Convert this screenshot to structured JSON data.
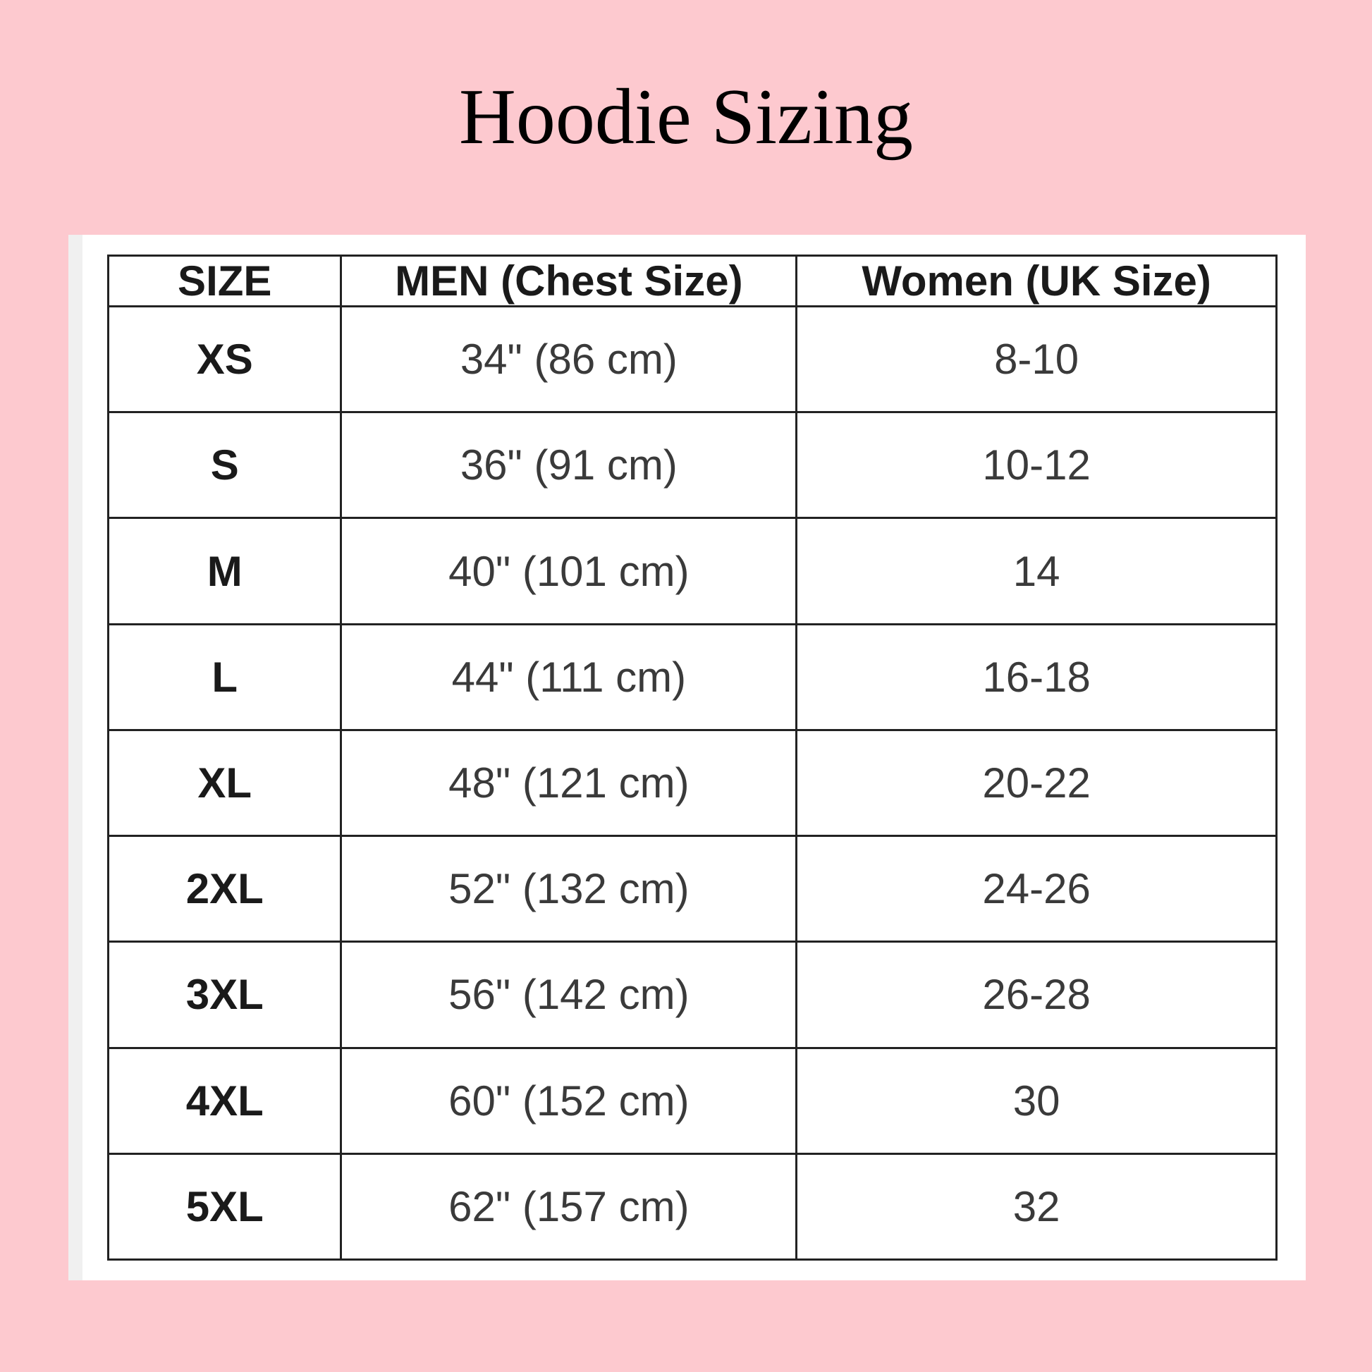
{
  "title": "Hoodie Sizing",
  "colors": {
    "background": "#fdc9cf",
    "panel": "#ffffff",
    "border": "#222222"
  },
  "table": {
    "headers": [
      "SIZE",
      "MEN (Chest Size)",
      "Women (UK Size)"
    ],
    "rows": [
      [
        "XS",
        "34\" (86 cm)",
        "8-10"
      ],
      [
        "S",
        "36\" (91 cm)",
        "10-12"
      ],
      [
        "M",
        "40\" (101 cm)",
        "14"
      ],
      [
        "L",
        "44\" (111 cm)",
        "16-18"
      ],
      [
        "XL",
        "48\" (121 cm)",
        "20-22"
      ],
      [
        "2XL",
        "52\" (132 cm)",
        "24-26"
      ],
      [
        "3XL",
        "56\" (142 cm)",
        "26-28"
      ],
      [
        "4XL",
        "60\" (152 cm)",
        "30"
      ],
      [
        "5XL",
        "62\" (157 cm)",
        "32"
      ]
    ]
  }
}
